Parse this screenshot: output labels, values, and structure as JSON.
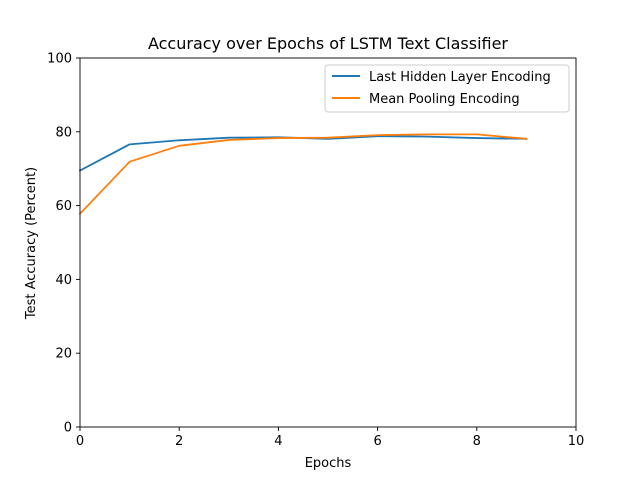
{
  "chart_data": {
    "type": "line",
    "title": "Accuracy over Epochs of LSTM Text Classifier",
    "xlabel": "Epochs",
    "ylabel": "Test Accuracy (Percent)",
    "xlim": [
      0,
      10
    ],
    "ylim": [
      0,
      100
    ],
    "x_ticks": [
      0,
      2,
      4,
      6,
      8,
      10
    ],
    "y_ticks": [
      0,
      20,
      40,
      60,
      80,
      100
    ],
    "grid": false,
    "legend_position": "top-right",
    "x": [
      0,
      1,
      2,
      3,
      4,
      5,
      6,
      7,
      8,
      9
    ],
    "series": [
      {
        "name": "Last Hidden Layer Encoding",
        "color": "#1f77b4",
        "values": [
          69.5,
          76.6,
          77.7,
          78.4,
          78.5,
          78.1,
          78.8,
          78.7,
          78.3,
          78.1
        ]
      },
      {
        "name": "Mean Pooling Encoding",
        "color": "#ff7f0e",
        "values": [
          57.8,
          71.9,
          76.2,
          77.8,
          78.3,
          78.4,
          79.1,
          79.3,
          79.3,
          78.1
        ]
      }
    ]
  }
}
